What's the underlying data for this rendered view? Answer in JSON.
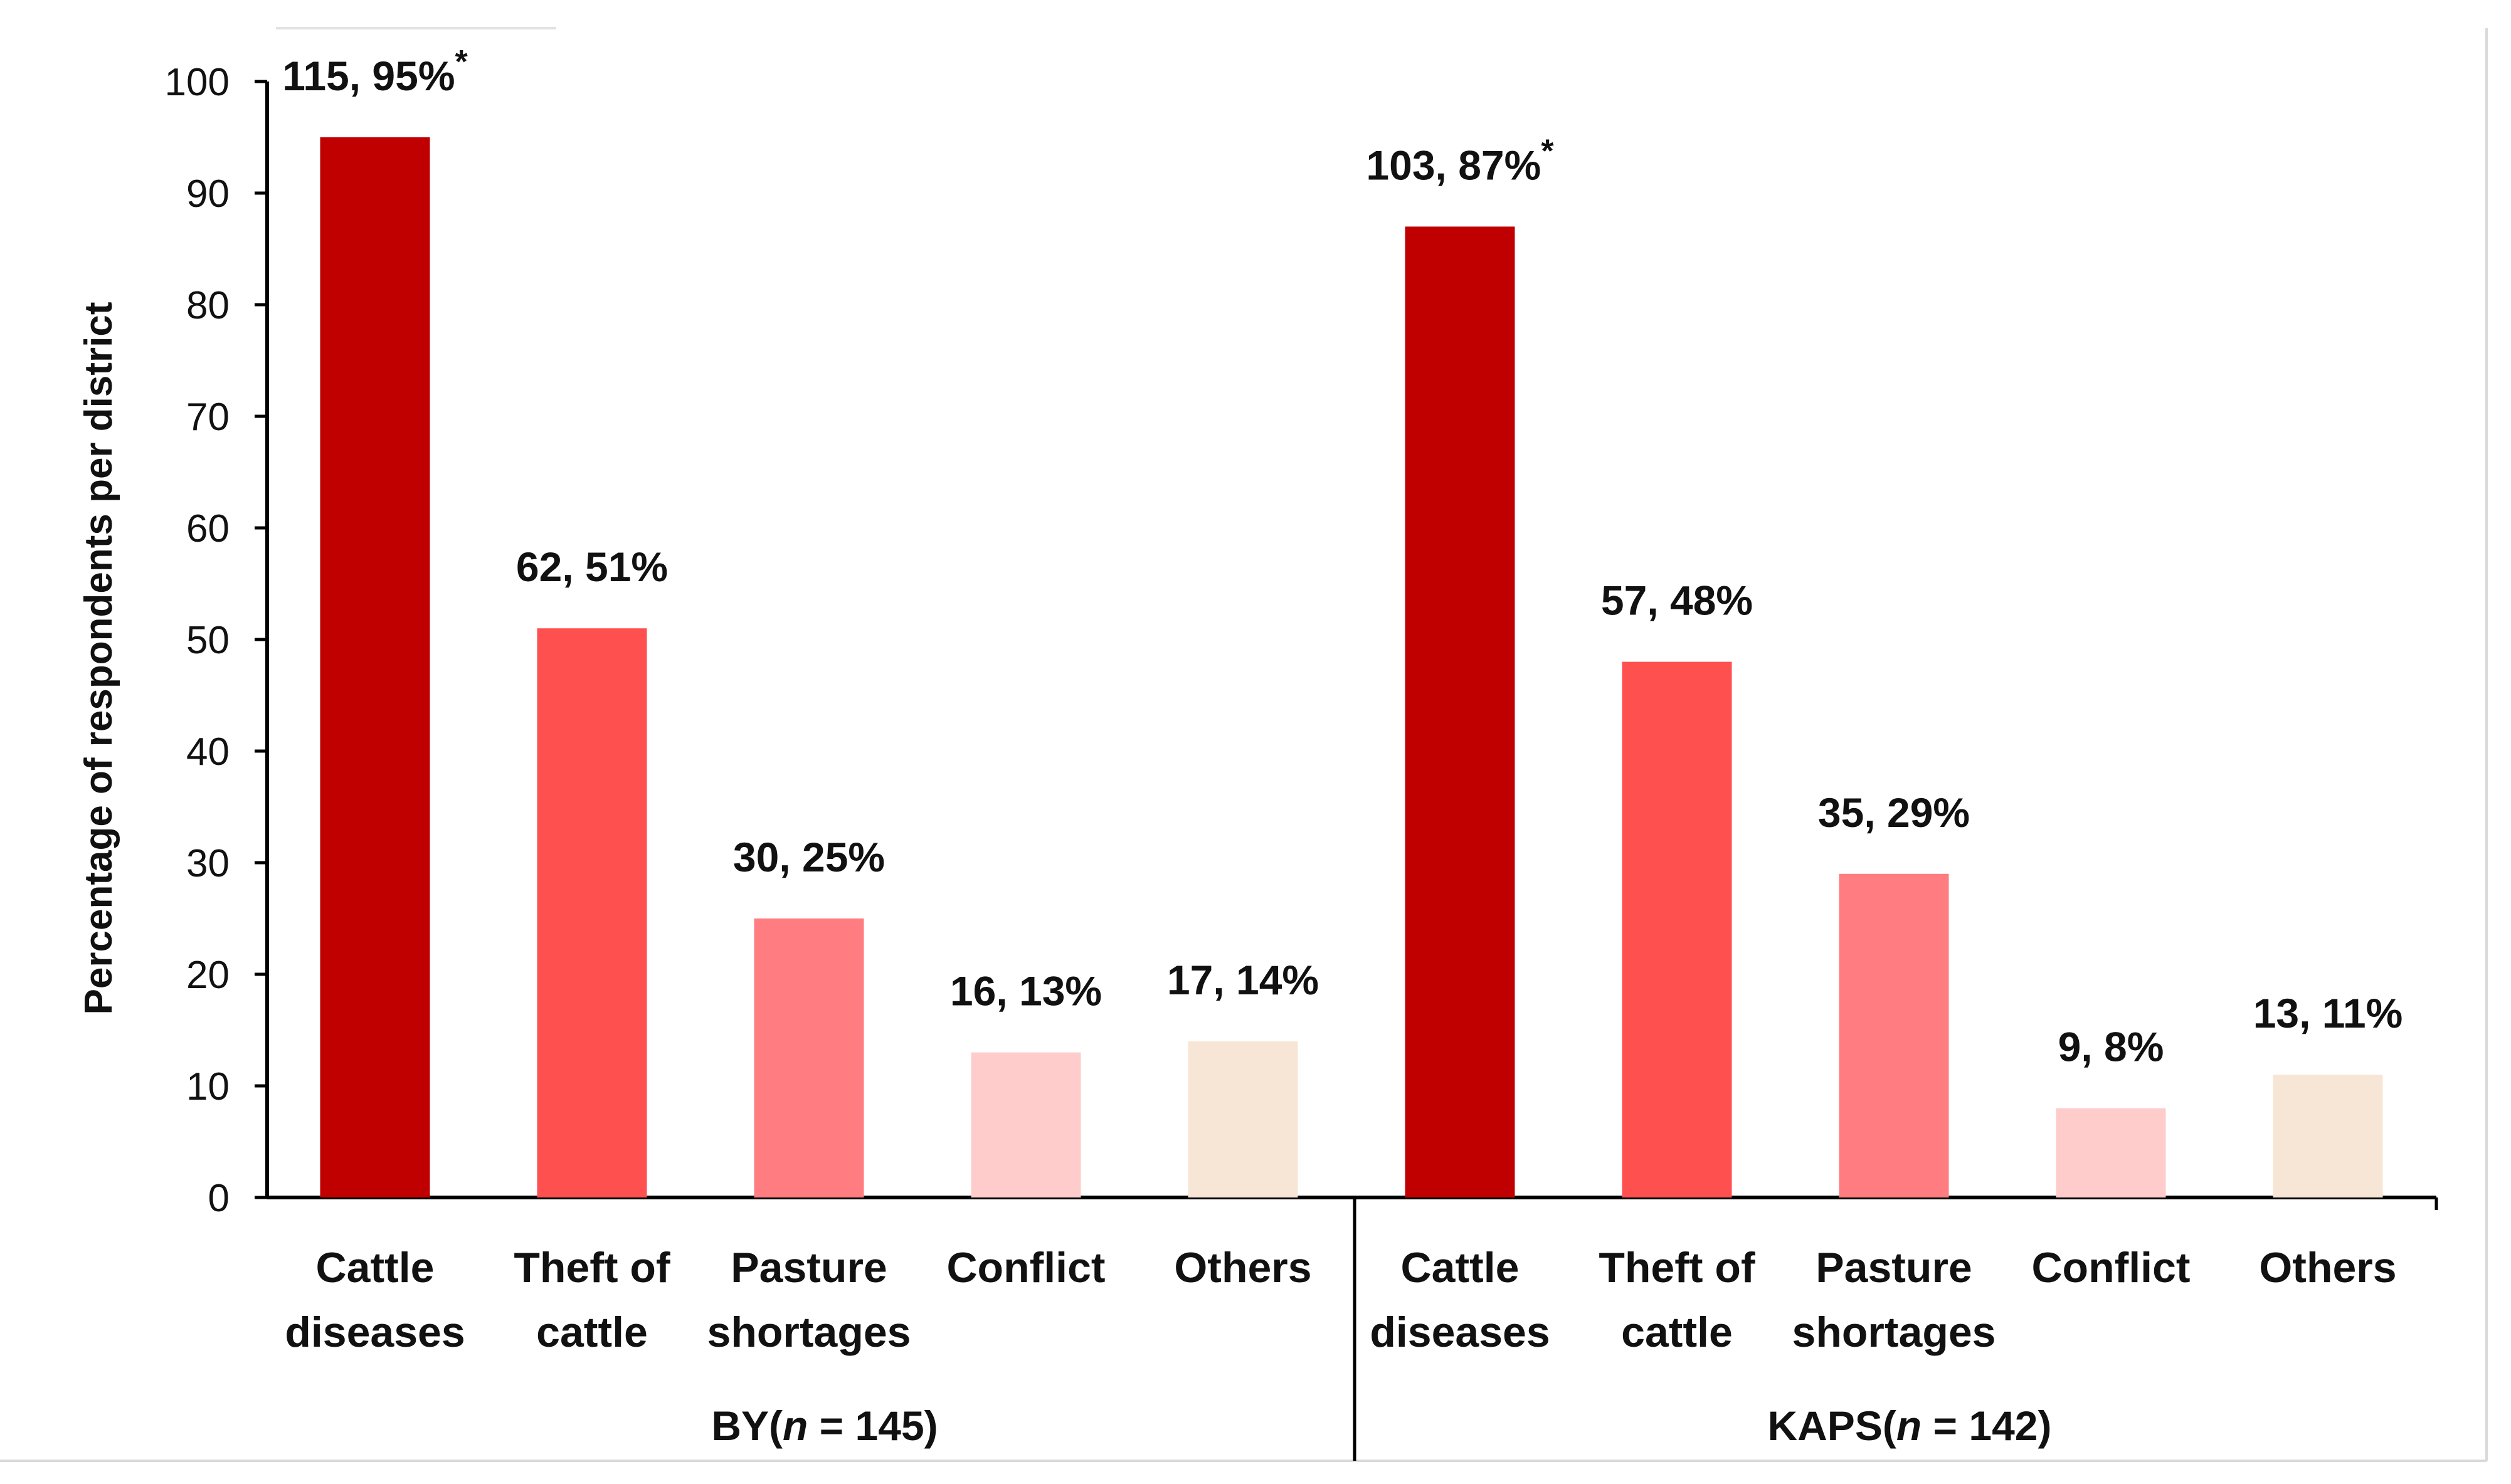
{
  "chart_data": {
    "type": "bar",
    "title": "",
    "ylabel": "Percentage of respondents per district",
    "xlabel": "",
    "ylim": [
      0,
      100
    ],
    "yticks": [
      0,
      10,
      20,
      30,
      40,
      50,
      60,
      70,
      80,
      90,
      100
    ],
    "grid": false,
    "groups": [
      {
        "name": "BY",
        "n_label": "n",
        "n_value": "= 145)",
        "bars": [
          {
            "category_line1": "Cattle",
            "category_line2": "diseases",
            "value": 95,
            "label": "115, 95%",
            "star": "*",
            "color": "#c00000"
          },
          {
            "category_line1": "Theft of",
            "category_line2": "cattle",
            "value": 51,
            "label": "62, 51%",
            "star": "",
            "color": "#ff5050"
          },
          {
            "category_line1": "Pasture",
            "category_line2": "shortages",
            "value": 25,
            "label": "30, 25%",
            "star": "",
            "color": "#ff7c80"
          },
          {
            "category_line1": "Conflict",
            "category_line2": "",
            "value": 13,
            "label": "16, 13%",
            "star": "",
            "color": "#ffcccc"
          },
          {
            "category_line1": "Others",
            "category_line2": "",
            "value": 14,
            "label": "17, 14%",
            "star": "",
            "color": "#f7e6d5"
          }
        ]
      },
      {
        "name": "KAPS",
        "n_label": "n",
        "n_value": "= 142)",
        "bars": [
          {
            "category_line1": "Cattle",
            "category_line2": "diseases",
            "value": 87,
            "label": "103, 87%",
            "star": "*",
            "color": "#c00000"
          },
          {
            "category_line1": "Theft of",
            "category_line2": "cattle",
            "value": 48,
            "label": "57, 48%",
            "star": "",
            "color": "#ff5050"
          },
          {
            "category_line1": "Pasture",
            "category_line2": "shortages",
            "value": 29,
            "label": "35, 29%",
            "star": "",
            "color": "#ff7c80"
          },
          {
            "category_line1": "Conflict",
            "category_line2": "",
            "value": 8,
            "label": "9, 8%",
            "star": "",
            "color": "#ffcccc"
          },
          {
            "category_line1": "Others",
            "category_line2": "",
            "value": 11,
            "label": "13, 11%",
            "star": "",
            "color": "#f7e6d5"
          }
        ]
      }
    ]
  }
}
